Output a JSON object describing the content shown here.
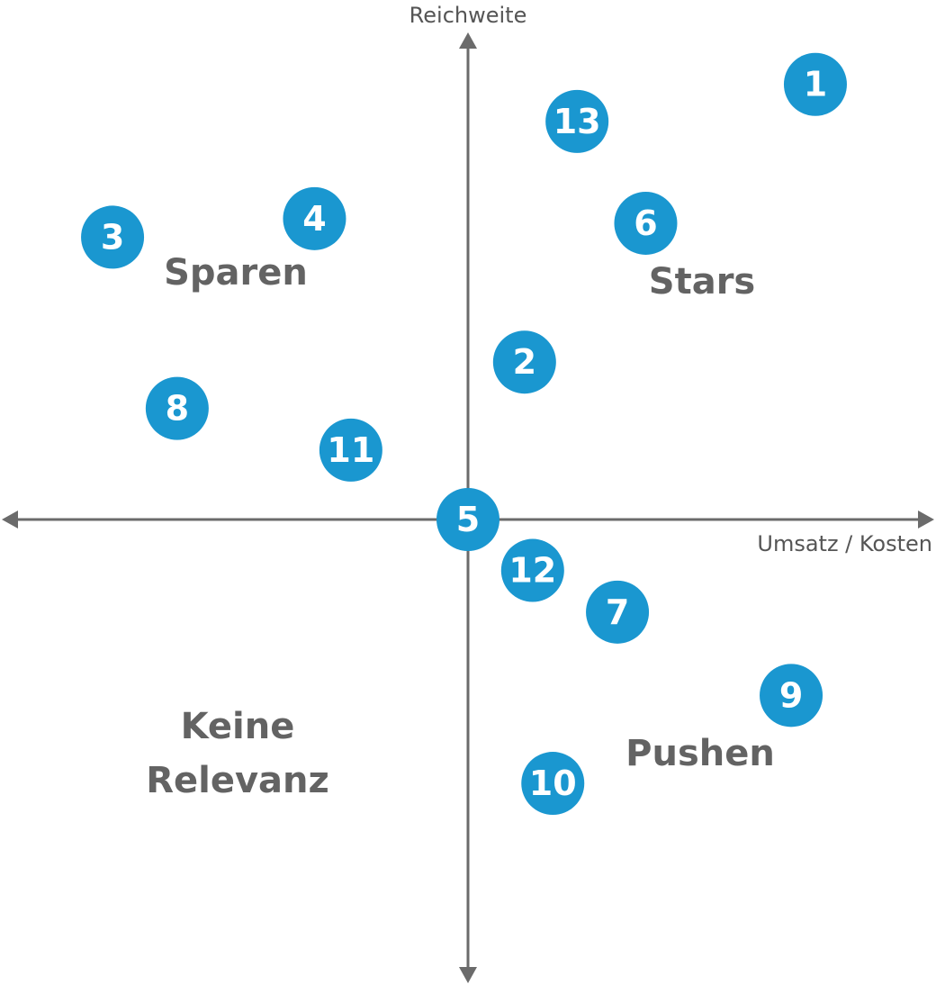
{
  "chart_data": {
    "type": "scatter",
    "title": "",
    "xlabel": "Umsatz / Kosten",
    "ylabel": "Reichweite",
    "xlim": [
      -10,
      10
    ],
    "ylim": [
      -10,
      10
    ],
    "grid": false,
    "quadrants": {
      "top_left": "Sparen",
      "top_right": "Stars",
      "bottom_left": [
        "Keine",
        "Relevanz"
      ],
      "bottom_right": "Pushen"
    },
    "points": [
      {
        "label": "1",
        "x": 8.6,
        "y": 9.4
      },
      {
        "label": "2",
        "x": 1.4,
        "y": 3.4
      },
      {
        "label": "3",
        "x": -8.8,
        "y": 6.1
      },
      {
        "label": "4",
        "x": -3.8,
        "y": 6.5
      },
      {
        "label": "5",
        "x": 0.0,
        "y": 0.0
      },
      {
        "label": "6",
        "x": 4.4,
        "y": 6.4
      },
      {
        "label": "7",
        "x": 3.7,
        "y": -2.0
      },
      {
        "label": "8",
        "x": -7.2,
        "y": 2.4
      },
      {
        "label": "9",
        "x": 8.0,
        "y": -3.8
      },
      {
        "label": "10",
        "x": 2.1,
        "y": -5.7
      },
      {
        "label": "11",
        "x": -2.9,
        "y": 1.5
      },
      {
        "label": "12",
        "x": 1.6,
        "y": -1.1
      },
      {
        "label": "13",
        "x": 2.7,
        "y": 8.6
      }
    ]
  },
  "colors": {
    "axis": "#6b6b6b",
    "point_fill": "#1a97d0",
    "point_text": "#ffffff",
    "quad_text": "#636363",
    "axis_text": "#555555"
  }
}
